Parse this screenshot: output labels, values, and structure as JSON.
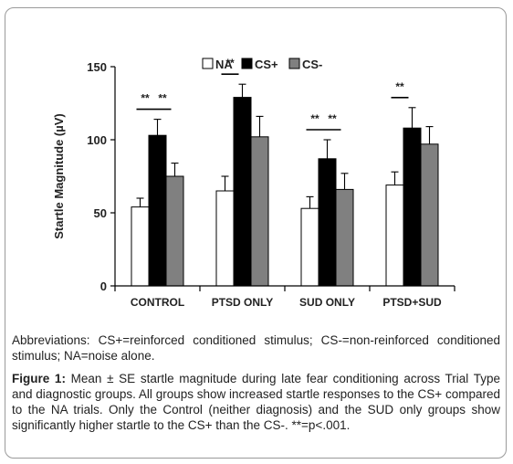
{
  "chart_data": {
    "type": "bar",
    "title": "",
    "xlabel": "",
    "ylabel": "Startle Magnitude (µV)",
    "ylim": [
      0,
      150
    ],
    "yticks": [
      0,
      50,
      100,
      150
    ],
    "categories": [
      "CONTROL",
      "PTSD ONLY",
      "SUD ONLY",
      "PTSD+SUD"
    ],
    "series": [
      {
        "name": "NA",
        "color": "#ffffff",
        "values": [
          54,
          65,
          53,
          69
        ],
        "errors": [
          6,
          10,
          8,
          9
        ]
      },
      {
        "name": "CS+",
        "color": "#000000",
        "values": [
          103,
          129,
          87,
          108
        ],
        "errors": [
          11,
          9,
          13,
          14
        ]
      },
      {
        "name": "CS-",
        "color": "#808080",
        "values": [
          75,
          102,
          66,
          97
        ],
        "errors": [
          9,
          14,
          11,
          12
        ]
      }
    ],
    "legend_position": "top-center",
    "significance": [
      {
        "category": 0,
        "from_series": 0,
        "to_series": 1,
        "label": "**"
      },
      {
        "category": 0,
        "from_series": 1,
        "to_series": 2,
        "label": "**"
      },
      {
        "category": 1,
        "from_series": 0,
        "to_series": 1,
        "label": "**"
      },
      {
        "category": 2,
        "from_series": 0,
        "to_series": 1,
        "label": "**"
      },
      {
        "category": 2,
        "from_series": 1,
        "to_series": 2,
        "label": "**"
      },
      {
        "category": 3,
        "from_series": 0,
        "to_series": 1,
        "label": "**"
      }
    ]
  },
  "text": {
    "abbreviations": "Abbreviations: CS+=reinforced conditioned stimulus; CS-=non-reinforced conditioned stimulus; NA=noise alone.",
    "figure_label": "Figure 1:",
    "caption": "Mean ± SE startle magnitude during late fear conditioning across Trial Type and diagnostic groups. All groups show increased startle responses to the CS+ compared to the NA trials. Only the Control (neither diagnosis) and the SUD only groups show significantly higher startle to the CS+ than the CS-. **=p<.001."
  }
}
